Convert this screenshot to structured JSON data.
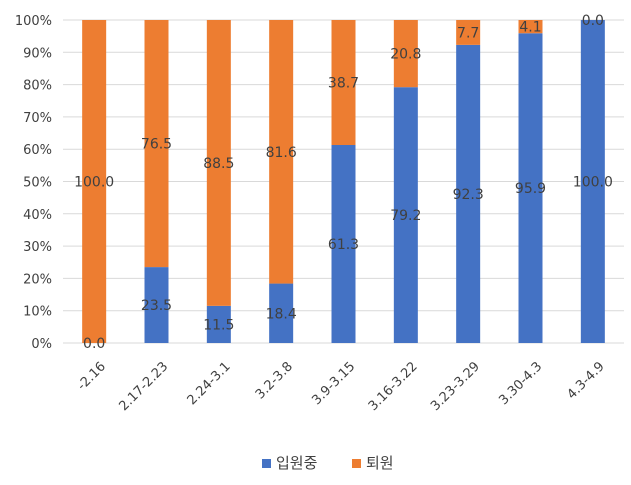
{
  "chart_data": {
    "type": "bar",
    "stacked": "100%",
    "categories": [
      "-2.16",
      "2.17-2.23",
      "2.24-3.1",
      "3.2-3.8",
      "3.9-3.15",
      "3.16-3.22",
      "3.23-3.29",
      "3.30-4.3",
      "4.3-4.9"
    ],
    "series": [
      {
        "name": "입원중",
        "color": "#4472C4",
        "values": [
          0.0,
          23.5,
          11.5,
          18.4,
          61.3,
          79.2,
          92.3,
          95.9,
          100.0
        ],
        "labels": [
          "0.0",
          "23.5",
          "11.5",
          "18.4",
          "61.3",
          "79.2",
          "92.3",
          "95.9",
          "100.0"
        ]
      },
      {
        "name": "퇴원",
        "color": "#ED7D31",
        "values": [
          100.0,
          76.5,
          88.5,
          81.6,
          38.7,
          20.8,
          7.7,
          4.1,
          0.0
        ],
        "labels": [
          "100.0",
          "76.5",
          "88.5",
          "81.6",
          "38.7",
          "20.8",
          "7.7",
          "4.1",
          "0.0"
        ]
      }
    ],
    "yticks": [
      "0%",
      "10%",
      "20%",
      "30%",
      "40%",
      "50%",
      "60%",
      "70%",
      "80%",
      "90%",
      "100%"
    ],
    "ylim": [
      0,
      100
    ],
    "grid": true,
    "legend": "bottom"
  }
}
